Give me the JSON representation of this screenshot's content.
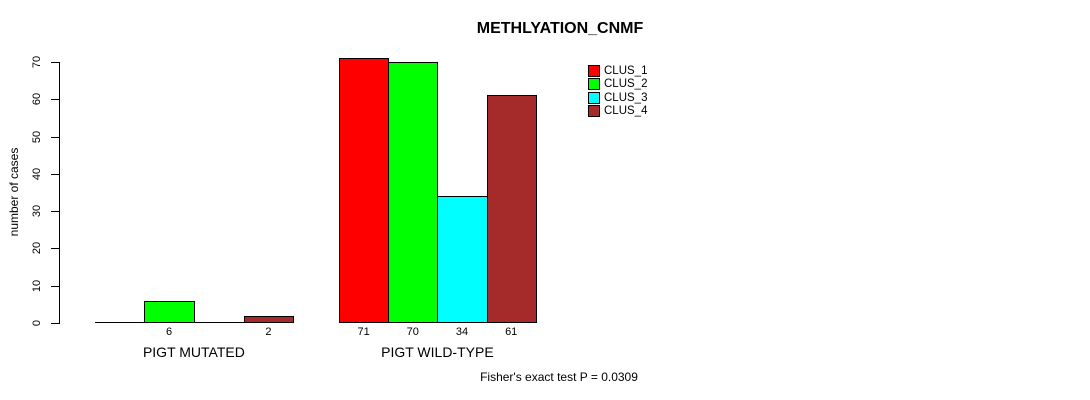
{
  "chart_data": {
    "type": "bar",
    "title": "METHLYATION_CNMF",
    "xlabel": "",
    "ylabel": "number of cases",
    "categories": [
      "PIGT MUTATED",
      "PIGT WILD-TYPE"
    ],
    "series": [
      {
        "name": "CLUS_1",
        "color": "#FF0000",
        "values": [
          0,
          71
        ]
      },
      {
        "name": "CLUS_2",
        "color": "#00FF00",
        "values": [
          6,
          70
        ]
      },
      {
        "name": "CLUS_3",
        "color": "#00FFFF",
        "values": [
          0,
          34
        ]
      },
      {
        "name": "CLUS_4",
        "color": "#A52A2A",
        "values": [
          2,
          61
        ]
      }
    ],
    "ylim": [
      0,
      70
    ],
    "yticks": [
      0,
      10,
      20,
      30,
      40,
      50,
      60,
      70
    ],
    "grid": false,
    "legend_position": "top-right",
    "bar_value_labels_shown_for_zero": false,
    "annotation": "Fisher's exact test P = 0.0309"
  }
}
